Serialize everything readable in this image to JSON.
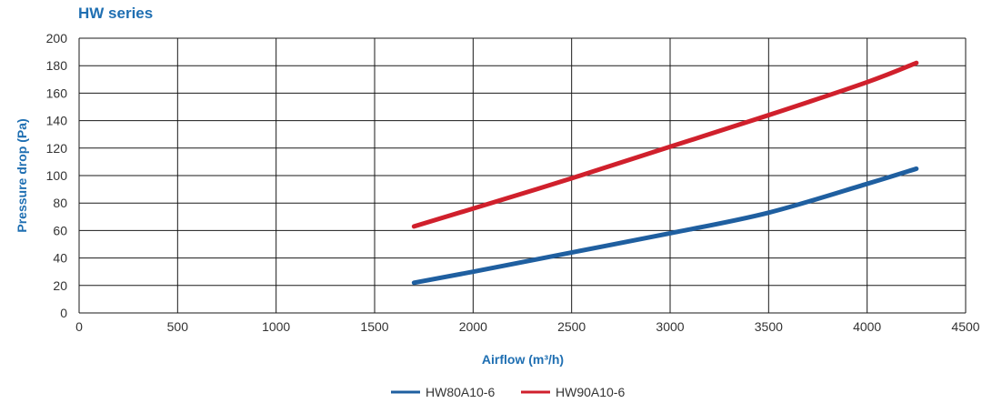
{
  "chart_data": {
    "type": "line",
    "title": "HW series",
    "xlabel": "Airflow (m³/h)",
    "ylabel": "Pressure drop (Pa)",
    "xlim": [
      0,
      4500
    ],
    "ylim": [
      0,
      200
    ],
    "xticks": [
      0,
      500,
      1000,
      1500,
      2000,
      2500,
      3000,
      3500,
      4000,
      4500
    ],
    "yticks": [
      0,
      20,
      40,
      60,
      80,
      100,
      120,
      140,
      160,
      180,
      200
    ],
    "grid": true,
    "legend_position": "bottom-center",
    "series": [
      {
        "name": "HW80A10-6",
        "color": "#1f5fa0",
        "x": [
          1700,
          2000,
          2500,
          3000,
          3500,
          4000,
          4250
        ],
        "y": [
          22,
          30,
          44,
          58,
          73,
          94,
          105
        ]
      },
      {
        "name": "HW90A10-6",
        "color": "#d0202c",
        "x": [
          1700,
          2000,
          2500,
          3000,
          3500,
          4000,
          4250
        ],
        "y": [
          63,
          76,
          98,
          121,
          144,
          168,
          182
        ]
      }
    ]
  }
}
